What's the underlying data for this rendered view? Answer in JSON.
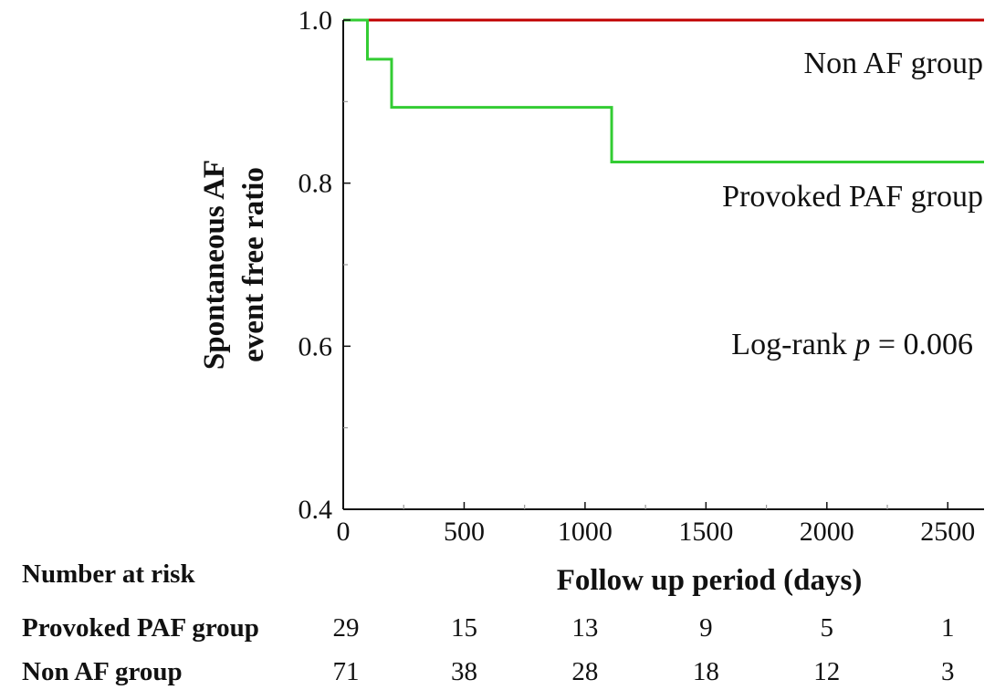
{
  "chart_data": {
    "type": "line",
    "xlabel": "Follow up period (days)",
    "ylabel_lines": [
      "Spontaneous AF",
      "event free ratio"
    ],
    "xlim": [
      0,
      2650
    ],
    "ylim": [
      0.4,
      1.0
    ],
    "xticks": [
      0,
      500,
      1000,
      1500,
      2000,
      2500
    ],
    "xtick_labels": [
      "0",
      "500",
      "1000",
      "1500",
      "2000",
      "2500"
    ],
    "yticks": [
      0.4,
      0.6,
      0.8,
      1.0
    ],
    "ytick_labels": [
      "0.4",
      "0.6",
      "0.8",
      "1.0"
    ],
    "grid": false,
    "series": [
      {
        "name": "Non AF group",
        "color": "#c00000",
        "step": true,
        "x": [
          0,
          2650
        ],
        "y": [
          1.0,
          1.0
        ]
      },
      {
        "name": "Provoked PAF group",
        "color": "#33cc33",
        "step": true,
        "x": [
          0,
          100,
          200,
          1110,
          2650
        ],
        "y": [
          1.0,
          0.952,
          0.893,
          0.826,
          0.826
        ]
      }
    ],
    "annotations": {
      "stat_prefix": "Log-rank ",
      "stat_symbol": "p",
      "stat_suffix": " = 0.006"
    },
    "risk_table": {
      "title": "Number at risk",
      "rows": [
        {
          "label": "Provoked PAF group",
          "values": [
            "29",
            "15",
            "13",
            "9",
            "5",
            "1"
          ]
        },
        {
          "label": "Non AF group",
          "values": [
            "71",
            "38",
            "28",
            "18",
            "12",
            "3"
          ]
        }
      ]
    }
  }
}
